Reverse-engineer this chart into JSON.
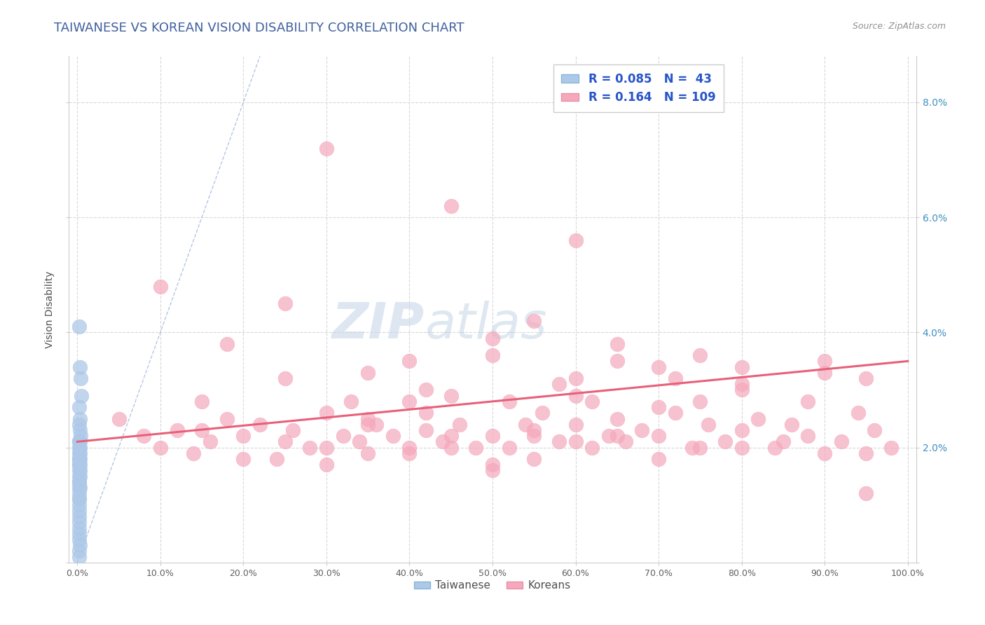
{
  "title": "TAIWANESE VS KOREAN VISION DISABILITY CORRELATION CHART",
  "source": "Source: ZipAtlas.com",
  "ylabel": "Vision Disability",
  "xlabel": "",
  "xlim": [
    -1,
    101
  ],
  "ylim": [
    0,
    8.8
  ],
  "xticks": [
    0,
    10,
    20,
    30,
    40,
    50,
    60,
    70,
    80,
    90,
    100
  ],
  "yticks": [
    0,
    2,
    4,
    6,
    8
  ],
  "ytick_labels": [
    "",
    "2.0%",
    "4.0%",
    "6.0%",
    "8.0%"
  ],
  "xtick_labels": [
    "0.0%",
    "10.0%",
    "20.0%",
    "30.0%",
    "40.0%",
    "50.0%",
    "60.0%",
    "70.0%",
    "80.0%",
    "90.0%",
    "100.0%"
  ],
  "taiwanese_R": 0.085,
  "taiwanese_N": 43,
  "korean_R": 0.164,
  "korean_N": 109,
  "taiwanese_color": "#adc8e8",
  "korean_color": "#f5a8bc",
  "taiwanese_edge": "#adc8e8",
  "korean_edge": "#f5a8bc",
  "regression_line_color": "#e8607a",
  "diagonal_line_color": "#a0b8e0",
  "background_color": "#ffffff",
  "grid_color": "#d8d8d8",
  "title_color": "#4060a0",
  "source_color": "#909090",
  "legend_R_color": "#2855c8",
  "watermark_color": "#c8d8e8",
  "taiwanese_x": [
    0.2,
    0.3,
    0.4,
    0.5,
    0.2,
    0.3,
    0.2,
    0.3,
    0.4,
    0.2,
    0.3,
    0.2,
    0.3,
    0.2,
    0.3,
    0.2,
    0.2,
    0.3,
    0.2,
    0.3,
    0.2,
    0.2,
    0.3,
    0.2,
    0.2,
    0.3,
    0.2,
    0.2,
    0.2,
    0.3,
    0.2,
    0.2,
    0.2,
    0.2,
    0.2,
    0.2,
    0.2,
    0.2,
    0.2,
    0.2,
    0.3,
    0.2,
    0.2
  ],
  "taiwanese_y": [
    4.1,
    3.4,
    3.2,
    2.9,
    2.7,
    2.5,
    2.4,
    2.3,
    2.2,
    2.1,
    2.1,
    2.1,
    2.0,
    2.0,
    1.9,
    1.9,
    1.8,
    1.8,
    1.8,
    1.7,
    1.7,
    1.7,
    1.6,
    1.6,
    1.5,
    1.5,
    1.4,
    1.4,
    1.3,
    1.3,
    1.2,
    1.1,
    1.1,
    1.0,
    0.9,
    0.8,
    0.7,
    0.6,
    0.5,
    0.4,
    0.3,
    0.2,
    0.1
  ],
  "korean_x": [
    5,
    8,
    10,
    12,
    14,
    15,
    16,
    18,
    20,
    22,
    24,
    25,
    26,
    28,
    30,
    30,
    32,
    33,
    34,
    35,
    36,
    38,
    40,
    40,
    42,
    42,
    44,
    45,
    46,
    48,
    50,
    50,
    52,
    52,
    54,
    55,
    56,
    58,
    60,
    60,
    62,
    62,
    64,
    65,
    66,
    68,
    70,
    70,
    72,
    74,
    75,
    76,
    78,
    80,
    80,
    82,
    84,
    86,
    88,
    90,
    92,
    94,
    95,
    96,
    98,
    10,
    18,
    25,
    35,
    42,
    50,
    58,
    65,
    72,
    80,
    88,
    95,
    20,
    30,
    40,
    50,
    60,
    70,
    80,
    90,
    15,
    25,
    35,
    45,
    55,
    65,
    75,
    85,
    95,
    30,
    45,
    60,
    75,
    90,
    55,
    65,
    40,
    35,
    50,
    60,
    70,
    55,
    45,
    80
  ],
  "korean_y": [
    2.5,
    2.2,
    2.0,
    2.3,
    1.9,
    2.8,
    2.1,
    2.5,
    2.2,
    2.4,
    1.8,
    3.2,
    2.3,
    2.0,
    2.6,
    1.7,
    2.2,
    2.8,
    2.1,
    1.9,
    2.4,
    2.2,
    3.5,
    2.0,
    2.3,
    2.6,
    2.1,
    2.9,
    2.4,
    2.0,
    3.6,
    2.2,
    2.8,
    2.0,
    2.4,
    2.2,
    2.6,
    2.1,
    3.2,
    2.4,
    2.0,
    2.8,
    2.2,
    2.5,
    2.1,
    2.3,
    3.4,
    2.2,
    2.6,
    2.0,
    2.8,
    2.4,
    2.1,
    3.1,
    2.3,
    2.5,
    2.0,
    2.4,
    2.2,
    3.5,
    2.1,
    2.6,
    1.2,
    2.3,
    2.0,
    4.8,
    3.8,
    4.5,
    3.3,
    3.0,
    3.9,
    3.1,
    3.5,
    3.2,
    3.0,
    2.8,
    3.2,
    1.8,
    2.0,
    1.9,
    1.7,
    2.1,
    1.8,
    2.0,
    1.9,
    2.3,
    2.1,
    2.4,
    2.0,
    1.8,
    2.2,
    2.0,
    2.1,
    1.9,
    7.2,
    6.2,
    5.6,
    3.6,
    3.3,
    4.2,
    3.8,
    2.8,
    2.5,
    1.6,
    2.9,
    2.7,
    2.3,
    2.2,
    3.4
  ],
  "reg_x0": 0,
  "reg_y0": 2.1,
  "reg_x1": 100,
  "reg_y1": 3.5
}
